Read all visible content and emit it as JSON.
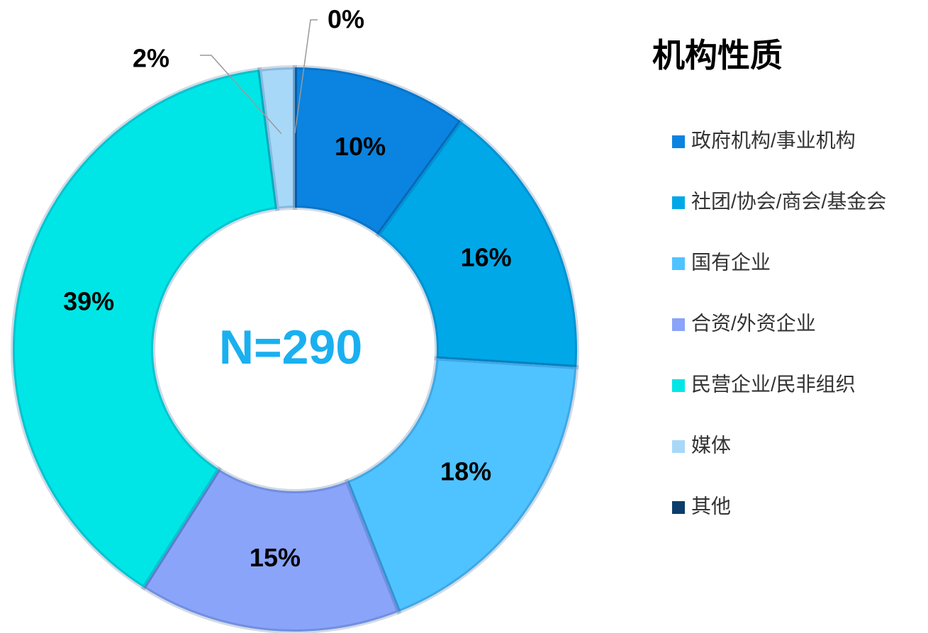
{
  "chart_data": {
    "type": "pie",
    "donut": true,
    "title": "机构性质",
    "annotation": "N=290",
    "categories": [
      "政府机构/事业机构",
      "社团/协会/商会/基金会",
      "国有企业",
      "合资/外资企业",
      "民营企业/民非组织",
      "媒体",
      "其他"
    ],
    "values": [
      10,
      16,
      18,
      15,
      39,
      2,
      0
    ],
    "value_labels": [
      "10%",
      "16%",
      "18%",
      "15%",
      "39%",
      "2%",
      "0%"
    ],
    "colors": [
      "#0a84e0",
      "#00a8e8",
      "#4fc3ff",
      "#8aa4fa",
      "#00e6e6",
      "#a8d8f8",
      "#0a3d6b"
    ],
    "legend": "right"
  }
}
